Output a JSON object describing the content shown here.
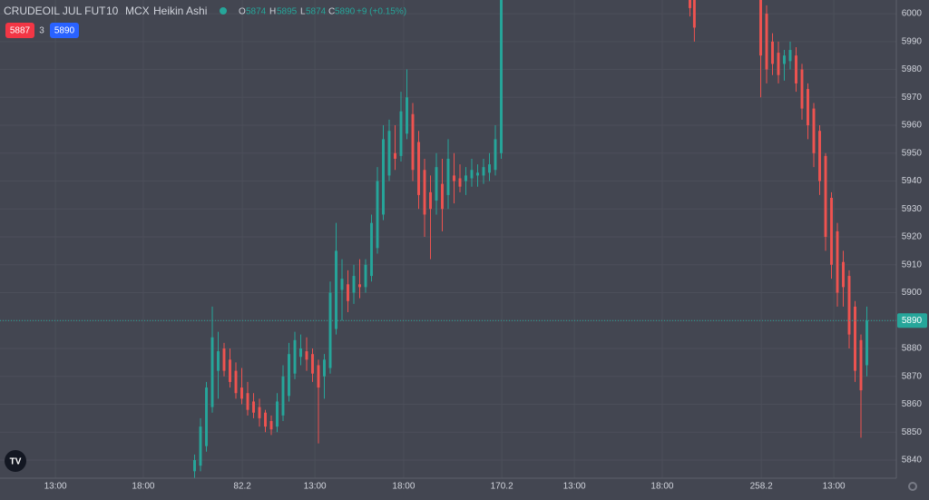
{
  "header": {
    "symbol": "CRUDEOIL JUL FUT",
    "interval": "10",
    "exchange": "MCX",
    "style": "Heikin Ashi",
    "o_label": "O",
    "open": 5874,
    "h_label": "H",
    "high": 5895,
    "l_label": "L",
    "low": 5874,
    "c_label": "C",
    "close": 5890,
    "change": "+9 (+0.15%)",
    "sell": 5887,
    "spread": 3,
    "buy": 5890
  },
  "chart_data": {
    "type": "candlestick",
    "up_color": "#26a69a",
    "down_color": "#ef5350",
    "grid": true,
    "last_price": 5890,
    "x": [
      66,
      68,
      70,
      72,
      74,
      76,
      78,
      80,
      82,
      84,
      86,
      88,
      90,
      92,
      94,
      96,
      98,
      100,
      102,
      104,
      106,
      108,
      110,
      112,
      114,
      116,
      118,
      120,
      122,
      124,
      126,
      128,
      130,
      132,
      134,
      136,
      138,
      140,
      142,
      144,
      146,
      148,
      150,
      152,
      154,
      156,
      158,
      160,
      162,
      164,
      166,
      168,
      170,
      234,
      235.5,
      258,
      260,
      262,
      264,
      266,
      268,
      270,
      272,
      274,
      276,
      278,
      280,
      282,
      284,
      286,
      288,
      290,
      292,
      294
    ],
    "open": [
      5836,
      5838,
      5845,
      5859,
      5872,
      5880,
      5876,
      5872,
      5866,
      5864,
      5861,
      5859,
      5857,
      5854,
      5852,
      5856,
      5863,
      5871,
      5877,
      5879,
      5878,
      5874,
      5870,
      5873,
      5887,
      5901,
      5903,
      5900,
      5903,
      5902,
      5906,
      5916,
      5928,
      5942,
      5950,
      5949,
      5957,
      5964,
      5954,
      5944,
      5936,
      5933,
      5939,
      5935,
      5942,
      5941,
      5940,
      5941,
      5942,
      5942,
      5943,
      5944,
      5950,
      6015,
      6008,
      6020,
      6000,
      5990,
      5986,
      5982,
      5983,
      5985,
      5980,
      5973,
      5966,
      5958,
      5949,
      5934,
      5922,
      5911,
      5906,
      5895,
      5883,
      5874
    ],
    "high": [
      5842,
      5855,
      5868,
      5895,
      5886,
      5882,
      5880,
      5875,
      5873,
      5868,
      5864,
      5862,
      5858,
      5856,
      5864,
      5874,
      5882,
      5886,
      5885,
      5884,
      5880,
      5876,
      5878,
      5904,
      5925,
      5912,
      5908,
      5910,
      5912,
      5912,
      5928,
      5945,
      5960,
      5962,
      5960,
      5972,
      5980,
      5968,
      5958,
      5948,
      5942,
      5950,
      5948,
      5955,
      5950,
      5946,
      5945,
      5948,
      5946,
      5948,
      5950,
      5960,
      6030,
      6018,
      6010,
      6025,
      6003,
      5993,
      5990,
      5987,
      5990,
      5988,
      5982,
      5975,
      5968,
      5960,
      5950,
      5936,
      5925,
      5915,
      5908,
      5897,
      5885,
      5895
    ],
    "low": [
      5833,
      5836,
      5843,
      5857,
      5862,
      5870,
      5866,
      5862,
      5860,
      5856,
      5855,
      5852,
      5850,
      5849,
      5850,
      5854,
      5861,
      5869,
      5874,
      5872,
      5868,
      5846,
      5862,
      5871,
      5885,
      5890,
      5893,
      5896,
      5898,
      5900,
      5904,
      5914,
      5926,
      5940,
      5944,
      5947,
      5955,
      5940,
      5930,
      5920,
      5912,
      5928,
      5922,
      5930,
      5932,
      5936,
      5935,
      5938,
      5938,
      5939,
      5940,
      5942,
      5948,
      5999,
      5990,
      5970,
      5975,
      5978,
      5975,
      5976,
      5980,
      5972,
      5962,
      5955,
      5945,
      5935,
      5915,
      5905,
      5895,
      5895,
      5880,
      5868,
      5848,
      5870
    ],
    "close": [
      5840,
      5852,
      5866,
      5884,
      5879,
      5872,
      5868,
      5864,
      5862,
      5858,
      5857,
      5855,
      5852,
      5851,
      5861,
      5870,
      5878,
      5883,
      5880,
      5876,
      5871,
      5866,
      5876,
      5900,
      5915,
      5905,
      5897,
      5906,
      5902,
      5910,
      5925,
      5940,
      5955,
      5958,
      5948,
      5965,
      5970,
      5944,
      5935,
      5928,
      5930,
      5945,
      5930,
      5948,
      5940,
      5938,
      5942,
      5944,
      5943,
      5945,
      5946,
      5955,
      6025,
      6002,
      5995,
      5985,
      5980,
      5982,
      5978,
      5985,
      5987,
      5975,
      5966,
      5960,
      5950,
      5940,
      5920,
      5910,
      5900,
      5902,
      5885,
      5872,
      5865,
      5890
    ],
    "xlim": [
      0,
      304
    ],
    "ylim": [
      5833.5,
      6004.9
    ],
    "xticks": [
      {
        "value": 18.8,
        "label": "13:00"
      },
      {
        "value": 48.6,
        "label": "18:00"
      },
      82.2,
      {
        "value": 106.8,
        "label": "13:00"
      },
      {
        "value": 136.9,
        "label": "18:00"
      },
      170.2,
      {
        "value": 194.8,
        "label": "13:00"
      },
      {
        "value": 224.6,
        "label": "18:00"
      },
      258.2,
      {
        "value": 282.8,
        "label": "13:00"
      }
    ],
    "xtick_labels_override": null,
    "yticks": [
      5840,
      5850,
      5860,
      5870,
      5880,
      5890,
      5900,
      5910,
      5920,
      5930,
      5940,
      5950,
      5960,
      5970,
      5980,
      5990,
      6000
    ]
  }
}
